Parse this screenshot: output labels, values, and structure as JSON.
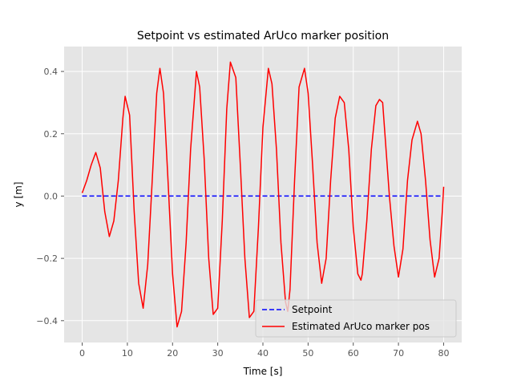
{
  "chart_data": {
    "type": "line",
    "title": "Setpoint vs estimated ArUco marker position",
    "xlabel": "Time [s]",
    "ylabel": "y [m]",
    "xlim": [
      -4,
      84
    ],
    "ylim": [
      -0.47,
      0.48
    ],
    "xticks": [
      0,
      10,
      20,
      30,
      40,
      50,
      60,
      70,
      80
    ],
    "yticks": [
      -0.4,
      -0.2,
      0.0,
      0.2,
      0.4
    ],
    "xtick_labels": [
      "0",
      "10",
      "20",
      "30",
      "40",
      "50",
      "60",
      "70",
      "80"
    ],
    "ytick_labels": [
      "−0.4",
      "−0.2",
      "0.0",
      "0.2",
      "0.4"
    ],
    "grid": true,
    "legend_position": "lower-right",
    "series": [
      {
        "name": "Setpoint",
        "color": "#0000ff",
        "style": "dashed",
        "x": [
          0,
          80
        ],
        "y": [
          0.0,
          0.0
        ]
      },
      {
        "name": "Estimated ArUco marker pos",
        "color": "#ff0000",
        "style": "solid",
        "x": [
          0,
          1,
          2,
          3,
          4,
          5,
          6,
          7,
          8,
          9,
          9.5,
          10.5,
          11.5,
          12.5,
          13.5,
          14.5,
          15.5,
          16.5,
          17.2,
          18,
          19,
          20,
          21,
          22,
          23,
          24,
          25.3,
          26,
          27,
          28,
          29,
          30,
          31,
          32,
          32.8,
          34,
          35,
          36,
          37,
          38,
          39,
          40,
          41.2,
          42,
          43,
          44,
          45,
          45.5,
          46,
          47,
          48,
          49.2,
          50,
          51,
          52,
          53,
          54,
          55,
          56,
          57,
          58,
          59,
          60,
          61,
          61.7,
          62,
          63,
          64,
          65,
          65.8,
          66.5,
          67,
          68,
          69,
          70,
          71,
          72,
          73,
          74.2,
          75,
          76,
          77,
          78,
          79,
          79.7,
          80
        ],
        "y": [
          0.01,
          0.05,
          0.1,
          0.14,
          0.09,
          -0.05,
          -0.13,
          -0.08,
          0.05,
          0.25,
          0.32,
          0.26,
          -0.05,
          -0.28,
          -0.36,
          -0.22,
          0.05,
          0.33,
          0.41,
          0.33,
          0.05,
          -0.25,
          -0.42,
          -0.37,
          -0.15,
          0.15,
          0.4,
          0.35,
          0.12,
          -0.2,
          -0.38,
          -0.36,
          -0.08,
          0.28,
          0.43,
          0.38,
          0.1,
          -0.2,
          -0.39,
          -0.37,
          -0.1,
          0.22,
          0.41,
          0.36,
          0.15,
          -0.15,
          -0.34,
          -0.37,
          -0.3,
          0.05,
          0.35,
          0.41,
          0.33,
          0.1,
          -0.15,
          -0.28,
          -0.2,
          0.05,
          0.25,
          0.32,
          0.3,
          0.15,
          -0.1,
          -0.25,
          -0.27,
          -0.25,
          -0.08,
          0.15,
          0.29,
          0.31,
          0.3,
          0.2,
          0.0,
          -0.16,
          -0.26,
          -0.17,
          0.05,
          0.18,
          0.24,
          0.2,
          0.05,
          -0.14,
          -0.26,
          -0.2,
          -0.05,
          0.03
        ]
      }
    ]
  }
}
